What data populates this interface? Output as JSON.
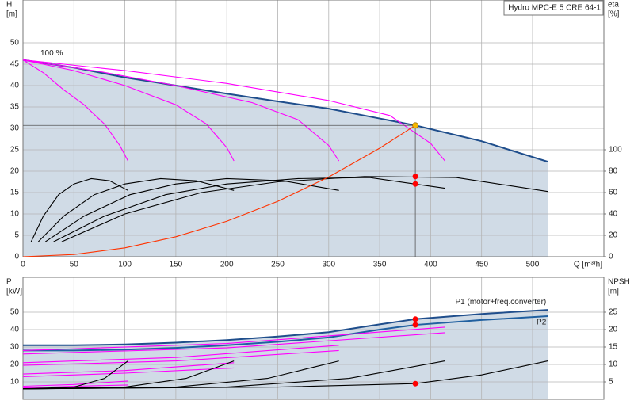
{
  "chart_data": [
    {
      "type": "line",
      "title": "Hydro MPC-E 5 CRE 64-1",
      "xlabel": "Q [m³/h]",
      "ylabel": [
        "H",
        "[m]"
      ],
      "y2label": [
        "eta",
        "[%]"
      ],
      "xlim": [
        0,
        570
      ],
      "ylim": [
        0,
        60
      ],
      "y2lim": [
        0,
        240
      ],
      "xticks": [
        0,
        50,
        100,
        150,
        200,
        250,
        300,
        350,
        400,
        450,
        500
      ],
      "yticks": [
        0,
        5,
        10,
        15,
        20,
        25,
        30,
        35,
        40,
        45,
        50
      ],
      "y2ticks": [
        0,
        20,
        40,
        60,
        80,
        100
      ],
      "grid": true,
      "show_xtick_labels": true,
      "area": "#d0dbe6",
      "series_label_position": "start",
      "series": [
        {
          "name": "100 %",
          "color": "#1f4e8c",
          "x": [
            0,
            50,
            100,
            150,
            200,
            250,
            300,
            350,
            385,
            450,
            515
          ],
          "values": [
            46,
            44.2,
            41.9,
            40,
            38.1,
            36.3,
            34.6,
            32.3,
            30.7,
            27,
            22.2
          ]
        },
        {
          "color": "#ff00ff",
          "x": [
            0,
            20,
            40,
            60,
            80,
            95,
            103
          ],
          "values": [
            46,
            43,
            39,
            35.5,
            31,
            26,
            22.4
          ]
        },
        {
          "color": "#ff00ff",
          "x": [
            0,
            50,
            100,
            150,
            180,
            200,
            207
          ],
          "values": [
            46,
            43.5,
            40,
            35.5,
            31,
            25.5,
            22.4
          ]
        },
        {
          "color": "#ff00ff",
          "x": [
            0,
            75,
            150,
            225,
            270,
            300,
            310
          ],
          "values": [
            46,
            43.3,
            40,
            36,
            32,
            26,
            22.4
          ]
        },
        {
          "color": "#ff00ff",
          "x": [
            0,
            100,
            200,
            300,
            360,
            400,
            414
          ],
          "values": [
            46,
            43.5,
            40.5,
            36.5,
            33,
            26.5,
            22.4
          ]
        },
        {
          "color": "#000000",
          "axis": "y2",
          "x": [
            8,
            20,
            35,
            50,
            67,
            85,
            103
          ],
          "values": [
            14,
            38,
            58,
            68,
            73,
            71,
            62
          ]
        },
        {
          "color": "#000000",
          "axis": "y2",
          "x": [
            15,
            40,
            70,
            100,
            135,
            170,
            207
          ],
          "values": [
            14,
            38,
            58,
            68,
            73,
            71,
            62
          ]
        },
        {
          "color": "#000000",
          "axis": "y2",
          "x": [
            22,
            60,
            105,
            150,
            200,
            255,
            310
          ],
          "values": [
            14,
            38,
            58,
            68,
            73,
            71,
            62
          ]
        },
        {
          "color": "#000000",
          "axis": "y2",
          "x": [
            30,
            80,
            140,
            200,
            270,
            340,
            414
          ],
          "values": [
            14,
            38,
            58,
            68,
            73,
            74,
            64
          ]
        },
        {
          "color": "#000000",
          "axis": "y2",
          "x": [
            38,
            100,
            175,
            250,
            335,
            425,
            515
          ],
          "values": [
            14,
            40,
            60,
            70,
            75,
            74,
            61
          ]
        },
        {
          "color": "#ff3300",
          "x": [
            0,
            50,
            100,
            150,
            200,
            250,
            300,
            350,
            385
          ],
          "values": [
            0,
            0.52,
            2.07,
            4.66,
            8.28,
            12.94,
            18.64,
            25.37,
            30.7
          ]
        }
      ],
      "markers": [
        {
          "x": 385,
          "y": 30.7,
          "color": "#f5b800",
          "guides": true
        },
        {
          "x": 385,
          "y": 75,
          "axis": "y2",
          "color": "#ff0000"
        },
        {
          "x": 385,
          "y": 68,
          "axis": "y2",
          "color": "#ff0000"
        }
      ]
    },
    {
      "type": "line",
      "ylabel": [
        "P",
        "[kW]"
      ],
      "y2label": [
        "NPSH",
        "[m]"
      ],
      "xlim": [
        0,
        570
      ],
      "ylim": [
        0,
        70
      ],
      "y2lim": [
        0,
        35
      ],
      "xticks": [
        0,
        50,
        100,
        150,
        200,
        250,
        300,
        350,
        400,
        450,
        500
      ],
      "yticks": [
        10,
        20,
        30,
        40,
        50
      ],
      "y2ticks": [
        5,
        10,
        15,
        20,
        25
      ],
      "grid": true,
      "show_xtick_labels": false,
      "area": "#d0dbe6",
      "series_label_position": "end",
      "series": [
        {
          "name": "P1 (motor+freq.converter)",
          "color": "#1f4e8c",
          "x": [
            0,
            50,
            100,
            150,
            200,
            250,
            300,
            350,
            385,
            450,
            515
          ],
          "values": [
            31,
            31,
            31.5,
            32.5,
            34,
            36,
            38.5,
            43,
            46,
            49,
            51.3
          ]
        },
        {
          "name": "P2",
          "color": "#2060a0",
          "x": [
            0,
            50,
            100,
            150,
            200,
            250,
            300,
            350,
            385,
            450,
            515
          ],
          "values": [
            28,
            28,
            28.5,
            29.5,
            31,
            33,
            35.5,
            40,
            42.7,
            45.5,
            47.7
          ]
        },
        {
          "color": "#ff00ff",
          "x": [
            0,
            200,
            414
          ],
          "values": [
            28,
            32,
            41.4
          ]
        },
        {
          "color": "#ff00ff",
          "x": [
            0,
            200,
            414
          ],
          "values": [
            26,
            29.5,
            38.2
          ]
        },
        {
          "color": "#ff00ff",
          "x": [
            0,
            150,
            310
          ],
          "values": [
            21,
            24,
            31
          ]
        },
        {
          "color": "#ff00ff",
          "x": [
            0,
            150,
            310
          ],
          "values": [
            19.5,
            22,
            28
          ]
        },
        {
          "color": "#ff00ff",
          "x": [
            0,
            100,
            207
          ],
          "values": [
            14.5,
            16.5,
            21
          ]
        },
        {
          "color": "#ff00ff",
          "x": [
            0,
            100,
            207
          ],
          "values": [
            13,
            15,
            18
          ]
        },
        {
          "color": "#ff00ff",
          "x": [
            0,
            50,
            103
          ],
          "values": [
            7.5,
            8.5,
            10.5
          ]
        },
        {
          "color": "#ff00ff",
          "x": [
            0,
            50,
            103
          ],
          "values": [
            6.5,
            7.5,
            8.2
          ]
        },
        {
          "color": "#000000",
          "axis": "y2",
          "x": [
            0,
            50,
            80,
            103
          ],
          "values": [
            3,
            3.5,
            6,
            11
          ]
        },
        {
          "color": "#000000",
          "axis": "y2",
          "x": [
            0,
            100,
            160,
            207
          ],
          "values": [
            3,
            3.5,
            6,
            11
          ]
        },
        {
          "color": "#000000",
          "axis": "y2",
          "x": [
            0,
            150,
            240,
            310
          ],
          "values": [
            3,
            3.5,
            6,
            11
          ]
        },
        {
          "color": "#000000",
          "axis": "y2",
          "x": [
            0,
            200,
            320,
            414
          ],
          "values": [
            3,
            3.5,
            6,
            11
          ]
        },
        {
          "color": "#000000",
          "axis": "y2",
          "x": [
            0,
            250,
            385,
            450,
            515
          ],
          "values": [
            3,
            3.5,
            4.5,
            7,
            11
          ]
        }
      ],
      "markers": [
        {
          "x": 385,
          "y": 46,
          "color": "#ff0000"
        },
        {
          "x": 385,
          "y": 42.7,
          "color": "#ff0000"
        },
        {
          "x": 385,
          "y": 4.5,
          "axis": "y2",
          "color": "#ff0000"
        }
      ]
    }
  ]
}
